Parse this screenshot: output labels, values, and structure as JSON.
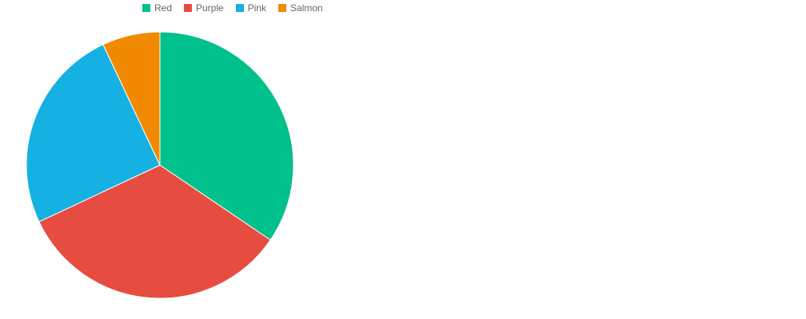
{
  "chart_data": {
    "type": "pie",
    "title": "",
    "legend_position": "top-left",
    "categories": [
      "Red",
      "Purple",
      "Pink",
      "Salmon"
    ],
    "values": [
      34.5,
      33.5,
      25.0,
      7.0
    ],
    "colors": [
      "#00c08b",
      "#e74c41",
      "#15b1e3",
      "#f18a00"
    ],
    "slice_border_color": "#ffffff"
  }
}
